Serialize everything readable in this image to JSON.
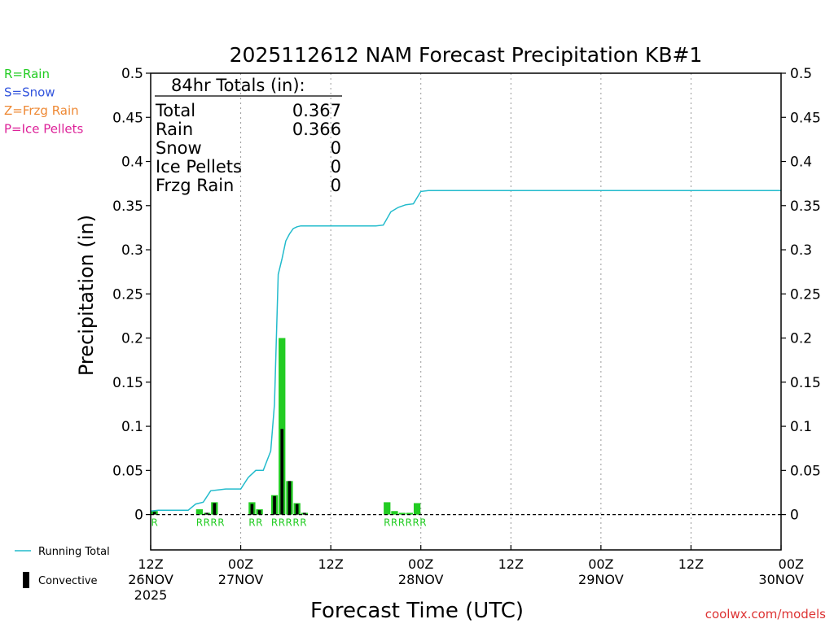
{
  "chart_data": {
    "type": "bar",
    "title": "2025112612 NAM Forecast Precipitation KB#1",
    "xlabel": "Forecast Time (UTC)",
    "ylabel": "Precipitation (in)",
    "ylim": [
      -0.04,
      0.5
    ],
    "x_range_hours": [
      0,
      84
    ],
    "y_ticks": [
      "0.5",
      "0.45",
      "0.4",
      "0.35",
      "0.3",
      "0.25",
      "0.2",
      "0.15",
      "0.1",
      "0.05",
      "0"
    ],
    "y_tick_values": [
      0.5,
      0.45,
      0.4,
      0.35,
      0.3,
      0.25,
      0.2,
      0.15,
      0.1,
      0.05,
      0
    ],
    "x_ticks": [
      {
        "hour": 0,
        "lines": [
          "12Z",
          "26NOV",
          "2025"
        ]
      },
      {
        "hour": 12,
        "lines": [
          "00Z",
          "27NOV"
        ]
      },
      {
        "hour": 24,
        "lines": [
          "12Z"
        ]
      },
      {
        "hour": 36,
        "lines": [
          "00Z",
          "28NOV"
        ]
      },
      {
        "hour": 48,
        "lines": [
          "12Z"
        ]
      },
      {
        "hour": 60,
        "lines": [
          "00Z",
          "29NOV"
        ]
      },
      {
        "hour": 72,
        "lines": [
          "12Z"
        ]
      },
      {
        "hour": 84,
        "lines": [
          "00Z",
          "30NOV"
        ]
      }
    ],
    "grid_hours": [
      12,
      24,
      36,
      48,
      60,
      72
    ],
    "legend_types": [
      {
        "label": "R=Rain",
        "color": "#22cc22"
      },
      {
        "label": "S=Snow",
        "color": "#3355dd"
      },
      {
        "label": "Z=Frzg Rain",
        "color": "#ee8833"
      },
      {
        "label": "P=Ice Pellets",
        "color": "#dd2299"
      }
    ],
    "legend_series": {
      "running_total": "Running Total",
      "convective": "Convective"
    },
    "totals_box": {
      "heading": "84hr Totals (in):",
      "rows": [
        {
          "label": "Total",
          "value": "0.367"
        },
        {
          "label": "Rain",
          "value": "0.366"
        },
        {
          "label": "Snow",
          "value": "0"
        },
        {
          "label": "Ice Pellets",
          "value": "0"
        },
        {
          "label": "Frzg Rain",
          "value": "0"
        }
      ]
    },
    "bars": [
      {
        "hour": 0.5,
        "total": 0.004,
        "convective": 0.003,
        "type": "R"
      },
      {
        "hour": 6.5,
        "total": 0.006,
        "convective": 0.0,
        "type": "R"
      },
      {
        "hour": 7.5,
        "total": 0.002,
        "convective": 0.002,
        "type": "R"
      },
      {
        "hour": 8.5,
        "total": 0.014,
        "convective": 0.013,
        "type": "R"
      },
      {
        "hour": 13.5,
        "total": 0.014,
        "convective": 0.012,
        "type": "R"
      },
      {
        "hour": 14.5,
        "total": 0.006,
        "convective": 0.005,
        "type": "R"
      },
      {
        "hour": 16.5,
        "total": 0.022,
        "convective": 0.021,
        "type": "R"
      },
      {
        "hour": 17.5,
        "total": 0.2,
        "convective": 0.097,
        "type": "R"
      },
      {
        "hour": 18.5,
        "total": 0.038,
        "convective": 0.038,
        "type": "R"
      },
      {
        "hour": 19.5,
        "total": 0.013,
        "convective": 0.012,
        "type": "R"
      },
      {
        "hour": 20.5,
        "total": 0.002,
        "convective": 0.002,
        "type": "R"
      },
      {
        "hour": 31.5,
        "total": 0.014,
        "convective": 0.0,
        "type": "R"
      },
      {
        "hour": 32.5,
        "total": 0.004,
        "convective": 0.0,
        "type": "R"
      },
      {
        "hour": 33.5,
        "total": 0.002,
        "convective": 0.0,
        "type": "R"
      },
      {
        "hour": 34.5,
        "total": 0.002,
        "convective": 0.0,
        "type": "R"
      },
      {
        "hour": 35.5,
        "total": 0.013,
        "convective": 0.0,
        "type": "R"
      }
    ],
    "type_label_groups": [
      {
        "text": "R",
        "start_hour": 0.5
      },
      {
        "text": "RRRR",
        "start_hour": 6.5
      },
      {
        "text": "RR",
        "start_hour": 13.5
      },
      {
        "text": "RRRRR",
        "start_hour": 16.5
      },
      {
        "text": "RRRRRR",
        "start_hour": 31.5
      }
    ],
    "running_total": {
      "x": [
        0,
        1,
        2,
        4,
        5,
        6,
        7,
        8,
        9,
        10,
        11,
        12,
        13,
        14,
        15,
        16,
        16.5,
        17,
        17.5,
        18,
        18.5,
        19,
        19.5,
        20,
        21,
        25,
        30,
        31,
        32,
        33,
        34,
        35,
        36,
        37,
        84
      ],
      "y": [
        0.004,
        0.005,
        0.005,
        0.005,
        0.005,
        0.012,
        0.014,
        0.027,
        0.028,
        0.029,
        0.029,
        0.029,
        0.042,
        0.05,
        0.05,
        0.072,
        0.125,
        0.272,
        0.29,
        0.31,
        0.318,
        0.324,
        0.326,
        0.327,
        0.327,
        0.327,
        0.327,
        0.328,
        0.343,
        0.348,
        0.351,
        0.352,
        0.366,
        0.367,
        0.367
      ]
    },
    "colors": {
      "rain_bar": "#22cc22",
      "convective_bar": "#000000",
      "running_total_line": "#22bbcc",
      "credit": "#dd3333"
    }
  },
  "footer": {
    "credit": "coolwx.com/models"
  }
}
